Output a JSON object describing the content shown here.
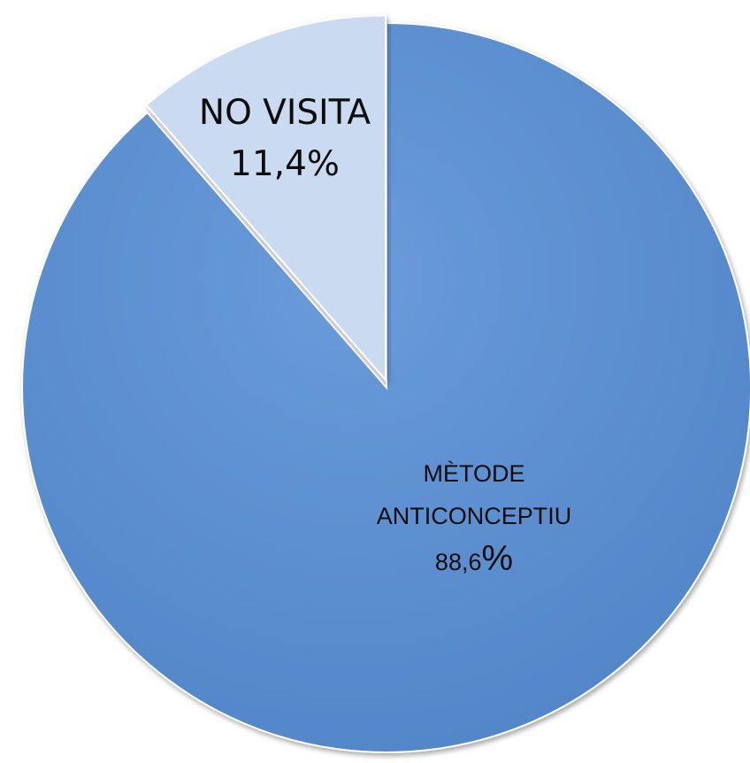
{
  "chart_data": {
    "type": "pie",
    "title": "",
    "slices": [
      {
        "label": "MÈTODE ANTICONCEPTIU",
        "label_lines": [
          "MÈTODE",
          "ANTICONCEPTIU"
        ],
        "value": 88.6,
        "value_text": "88,6",
        "percent_sign": "%",
        "color": "#5b8fd0"
      },
      {
        "label": "NO VISITA",
        "label_lines": [
          "NO VISITA"
        ],
        "value": 11.4,
        "value_text": "11,4%",
        "color": "#c9daf1"
      }
    ],
    "start_angle_deg": 0,
    "direction": "clockwise",
    "exploded_slice": "NO VISITA"
  }
}
